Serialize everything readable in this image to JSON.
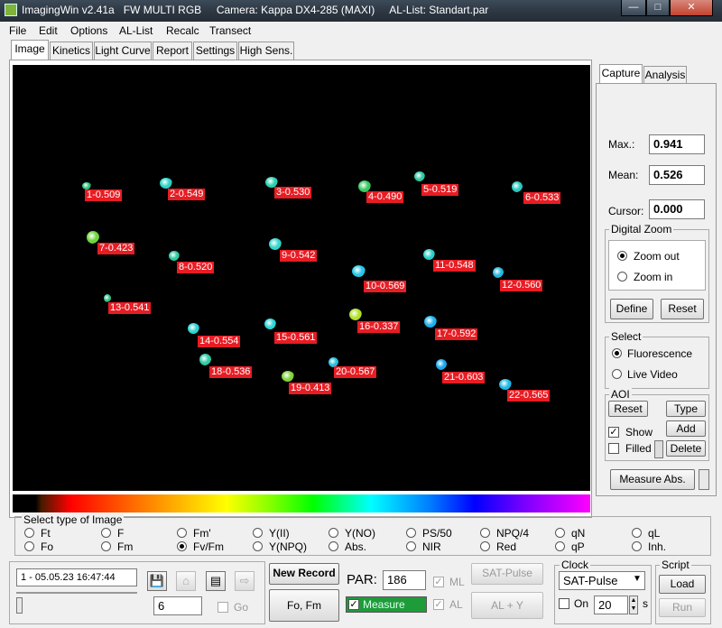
{
  "window": {
    "title": "ImagingWin v2.41a   FW MULTI RGB     Camera: Kappa DX4-285 (MAXI)     AL-List: Standart.par",
    "min": "—",
    "max": "□",
    "close": "✕"
  },
  "menu": [
    "File",
    "Edit",
    "Options",
    "AL-List",
    "Recalc",
    "Transect"
  ],
  "tabs": [
    "Image",
    "Kinetics",
    "Light Curve",
    "Report",
    "Settings",
    "High Sens."
  ],
  "right_tabs": [
    "Capture",
    "Analysis"
  ],
  "stats": {
    "max_label": "Max.:",
    "max_value": "0.941",
    "mean_label": "Mean:",
    "mean_value": "0.526",
    "cursor_label": "Cursor:",
    "cursor_value": "0.000"
  },
  "digital_zoom": {
    "title": "Digital Zoom",
    "zoom_out": "Zoom out",
    "zoom_in": "Zoom in",
    "define": "Define",
    "reset": "Reset"
  },
  "select_group": {
    "title": "Select",
    "fluorescence": "Fluorescence",
    "live_video": "Live Video"
  },
  "aoi": {
    "title": "AOI",
    "reset": "Reset",
    "type": "Type",
    "show": "Show",
    "add": "Add",
    "filled": "Filled",
    "delete": "Delete",
    "show_check": "✓"
  },
  "measure_abs": "Measure Abs.",
  "image_type": {
    "title": "Select type of Image",
    "row1": [
      "Ft",
      "F",
      "Fm'",
      "Y(II)",
      "Y(NO)",
      "PS/50",
      "NPQ/4",
      "qN",
      "qL"
    ],
    "row2": [
      "Fo",
      "Fm",
      "Fv/Fm",
      "Y(NPQ)",
      "Abs.",
      "NIR",
      "Red",
      "qP",
      "Inh."
    ],
    "selected": "Fv/Fm"
  },
  "record": {
    "timestamp": "1 - 05.05.23 16:47:44",
    "number": "6",
    "go": "Go"
  },
  "actions": {
    "new_record": "New Record",
    "fo_fm": "Fo, Fm",
    "par_label": "PAR:",
    "par_value": "186",
    "measure": "Measure",
    "ml": "ML",
    "al": "AL",
    "sat_pulse": "SAT-Pulse",
    "al_y": "AL + Y",
    "check_mark": "✓"
  },
  "clock": {
    "title": "Clock",
    "mode": "SAT-Pulse",
    "on": "On",
    "interval": "20",
    "unit": "s"
  },
  "script": {
    "title": "Script",
    "load": "Load",
    "run": "Run"
  },
  "aois": [
    {
      "label": "1-0.509",
      "color": "#2ec27a"
    },
    {
      "label": "2-0.549",
      "color": "#27d4c4"
    },
    {
      "label": "3-0.530",
      "color": "#2ad0b0"
    },
    {
      "label": "4-0.490",
      "color": "#38c95e"
    },
    {
      "label": "5-0.519",
      "color": "#2dc9a0"
    },
    {
      "label": "6-0.533",
      "color": "#28c8c0"
    },
    {
      "label": "7-0.423",
      "color": "#6ed43a"
    },
    {
      "label": "8-0.520",
      "color": "#2fc8a0"
    },
    {
      "label": "9-0.542",
      "color": "#33d6cc"
    },
    {
      "label": "10-0.569",
      "color": "#26c6e6"
    },
    {
      "label": "11-0.548",
      "color": "#2bd0c8"
    },
    {
      "label": "12-0.560",
      "color": "#22b8e0"
    },
    {
      "label": "13-0.541",
      "color": "#32c08a"
    },
    {
      "label": "14-0.554",
      "color": "#2cd2d0"
    },
    {
      "label": "15-0.561",
      "color": "#2bd6d6"
    },
    {
      "label": "16-0.337",
      "color": "#b2e02a"
    },
    {
      "label": "17-0.592",
      "color": "#1db2ee"
    },
    {
      "label": "18-0.536",
      "color": "#2dcca6"
    },
    {
      "label": "19-0.413",
      "color": "#7ed43a"
    },
    {
      "label": "20-0.567",
      "color": "#22c0dc"
    },
    {
      "label": "21-0.603",
      "color": "#19a8ee"
    },
    {
      "label": "22-0.565",
      "color": "#20b8e6"
    }
  ]
}
